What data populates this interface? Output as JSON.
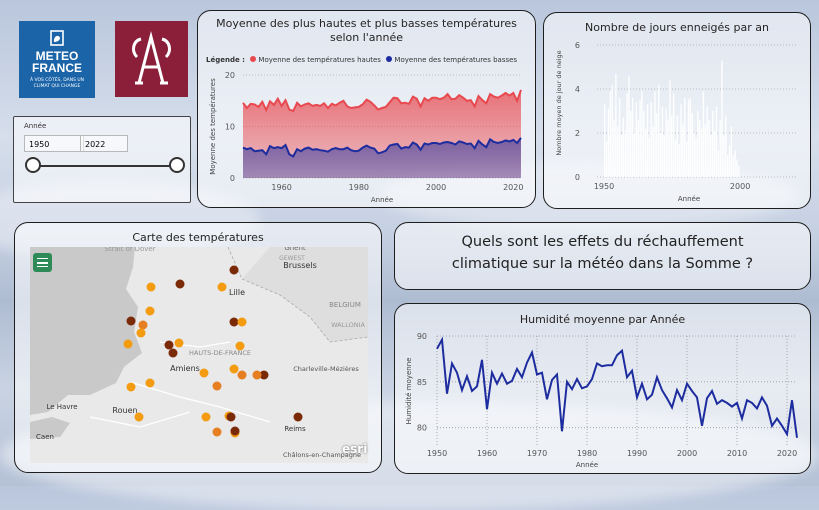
{
  "logos": {
    "meteo_line1": "METEO",
    "meteo_line2": "FRANCE",
    "meteo_tagline1": "À VOS CÔTÉS, DANS UN",
    "meteo_tagline2": "CLIMAT QUI CHANGE",
    "university_icon": "university-monogram-icon",
    "brand_blue": "#1b64a8",
    "brand_red": "#8b1f3a"
  },
  "filter": {
    "label": "Année",
    "start": "1950",
    "end": "2022",
    "range_fraction": [
      0,
      1
    ]
  },
  "temp_chart": {
    "title": "Moyenne des plus hautes et plus basses températures selon l'année",
    "legend_label": "Légende :",
    "legend_high": "Moyenne des températures hautes",
    "legend_low": "Moyenne des températures basses",
    "ylabel": "Moyenne des températures",
    "xlabel": "Année",
    "yticks": [
      "0",
      "10",
      "20"
    ],
    "xticks": [
      "1960",
      "1980",
      "2000",
      "2020"
    ],
    "color_high": "#e8494f",
    "color_low": "#1d2c9e"
  },
  "snow_chart": {
    "title": "Nombre de jours enneigés par an",
    "ylabel": "Nombre moyen de jour de neige",
    "xlabel": "Année",
    "yticks": [
      "0",
      "2",
      "4",
      "6"
    ],
    "xticks": [
      "1950",
      "2000"
    ]
  },
  "map": {
    "title": "Carte des températures",
    "menu_icon": "hamburger-menu-icon",
    "labels": [
      "Strait of Dover",
      "Brussels",
      "Ghent",
      "Lille",
      "BELGIUM",
      "WALLONIA",
      "HAUTS-DE-FRANCE",
      "Amiens",
      "Charleville-Mézières",
      "Le Havre",
      "Rouen",
      "Caen",
      "Reims",
      "Châlons-en-Champagne",
      "GEWEST"
    ],
    "attribution": "esri"
  },
  "question": {
    "line1": "Quels sont les effets du réchauffement",
    "line2": "climatique sur la météo dans la Somme ?"
  },
  "humidity_chart": {
    "title": "Humidité moyenne par Année",
    "ylabel": "Humidité moyenne",
    "xlabel": "Année",
    "yticks": [
      "80",
      "85",
      "90"
    ],
    "xticks": [
      "1950",
      "1960",
      "1970",
      "1980",
      "1990",
      "2000",
      "2010",
      "2020"
    ],
    "color": "#1d2c9e"
  },
  "chart_data": [
    {
      "type": "area",
      "title": "Moyenne des plus hautes et plus basses températures selon l'année",
      "xlabel": "Année",
      "ylabel": "Moyenne des températures",
      "xlim": [
        1950,
        2022
      ],
      "ylim": [
        0,
        20
      ],
      "x": [
        1950,
        1951,
        1952,
        1953,
        1954,
        1955,
        1956,
        1957,
        1958,
        1959,
        1960,
        1961,
        1962,
        1963,
        1964,
        1965,
        1966,
        1967,
        1968,
        1969,
        1970,
        1971,
        1972,
        1973,
        1974,
        1975,
        1976,
        1977,
        1978,
        1979,
        1980,
        1981,
        1982,
        1983,
        1984,
        1985,
        1986,
        1987,
        1988,
        1989,
        1990,
        1991,
        1992,
        1993,
        1994,
        1995,
        1996,
        1997,
        1998,
        1999,
        2000,
        2001,
        2002,
        2003,
        2004,
        2005,
        2006,
        2007,
        2008,
        2009,
        2010,
        2011,
        2012,
        2013,
        2014,
        2015,
        2016,
        2017,
        2018,
        2019,
        2020,
        2021,
        2022
      ],
      "series": [
        {
          "name": "Moyenne des températures hautes",
          "values": [
            14.6,
            13.6,
            14.4,
            14.3,
            13.8,
            14.8,
            13.2,
            14.9,
            14.2,
            15.4,
            14.0,
            15.1,
            13.3,
            13.0,
            14.6,
            13.9,
            14.3,
            14.5,
            14.0,
            14.2,
            14.0,
            14.5,
            13.6,
            14.4,
            14.1,
            14.6,
            15.0,
            13.9,
            13.6,
            13.7,
            13.8,
            14.3,
            15.2,
            14.8,
            14.1,
            13.3,
            13.6,
            13.8,
            14.7,
            15.6,
            15.5,
            14.5,
            14.6,
            14.4,
            15.8,
            15.4,
            13.9,
            15.5,
            15.0,
            15.6,
            15.6,
            15.3,
            15.6,
            16.3,
            15.3,
            15.4,
            16.1,
            15.6,
            15.0,
            15.1,
            13.9,
            15.9,
            15.1,
            14.5,
            16.3,
            15.8,
            15.6,
            16.0,
            16.5,
            16.0,
            16.5,
            15.0,
            17.1
          ]
        },
        {
          "name": "Moyenne des températures basses",
          "values": [
            5.9,
            5.6,
            5.8,
            5.2,
            5.3,
            5.4,
            4.6,
            6.2,
            5.8,
            6.0,
            5.8,
            6.4,
            4.6,
            4.2,
            5.6,
            5.2,
            5.7,
            5.9,
            5.5,
            5.6,
            5.4,
            5.3,
            5.1,
            5.6,
            5.8,
            5.6,
            5.6,
            5.9,
            5.4,
            5.2,
            5.3,
            5.9,
            6.3,
            5.9,
            5.7,
            4.8,
            5.0,
            5.3,
            6.3,
            6.5,
            6.6,
            5.7,
            6.0,
            5.9,
            6.9,
            6.5,
            5.5,
            6.7,
            6.5,
            6.8,
            6.8,
            6.6,
            6.9,
            7.0,
            6.8,
            6.5,
            7.1,
            6.9,
            6.6,
            6.7,
            5.8,
            7.2,
            6.5,
            6.0,
            7.5,
            7.0,
            6.8,
            7.0,
            7.3,
            7.1,
            7.4,
            6.8,
            7.8
          ]
        }
      ]
    },
    {
      "type": "bar",
      "title": "Nombre de jours enneigés par an",
      "xlabel": "Année",
      "ylabel": "Nombre moyen de jour de neige",
      "xlim": [
        1950,
        2022
      ],
      "ylim": [
        0,
        6
      ],
      "x": [
        1950,
        1951,
        1952,
        1953,
        1954,
        1955,
        1956,
        1957,
        1958,
        1959,
        1960,
        1961,
        1962,
        1963,
        1964,
        1965,
        1966,
        1967,
        1968,
        1969,
        1970,
        1971,
        1972,
        1973,
        1974,
        1975,
        1976,
        1977,
        1978,
        1979,
        1980,
        1981,
        1982,
        1983,
        1984,
        1985,
        1986,
        1987,
        1988,
        1989,
        1990,
        1991,
        1992,
        1993,
        1994,
        1995,
        1996,
        1997,
        1998,
        1999,
        2000,
        2001,
        2002,
        2003,
        2004,
        2005,
        2006,
        2007,
        2008,
        2009,
        2010,
        2011,
        2012,
        2013,
        2014,
        2015,
        2016,
        2017,
        2018,
        2019,
        2020,
        2021,
        2022
      ],
      "values": [
        3.3,
        1.6,
        3.1,
        3.9,
        4.2,
        2.6,
        4.7,
        2.3,
        3.6,
        1.9,
        2.7,
        2.1,
        3.8,
        4.6,
        3.0,
        3.6,
        2.0,
        3.4,
        2.6,
        3.5,
        3.9,
        3.0,
        2.2,
        3.3,
        1.8,
        3.4,
        2.3,
        3.9,
        2.9,
        4.2,
        2.0,
        3.2,
        1.9,
        3.1,
        2.6,
        4.4,
        2.8,
        3.8,
        1.7,
        2.8,
        1.5,
        3.3,
        2.4,
        3.6,
        1.6,
        3.5,
        3.6,
        2.9,
        2.0,
        1.8,
        3.0,
        2.6,
        2.2,
        3.9,
        2.4,
        3.2,
        2.6,
        1.9,
        3.0,
        2.1,
        3.2,
        1.2,
        2.6,
        5.3,
        1.9,
        2.8,
        1.0,
        1.4,
        2.3,
        1.0,
        1.2,
        0.8,
        0.5
      ]
    },
    {
      "type": "line",
      "title": "Humidité moyenne par Année",
      "xlabel": "Année",
      "ylabel": "Humidité moyenne",
      "xlim": [
        1950,
        2022
      ],
      "ylim": [
        78,
        90
      ],
      "x": [
        1950,
        1951,
        1952,
        1953,
        1954,
        1955,
        1956,
        1957,
        1958,
        1959,
        1960,
        1961,
        1962,
        1963,
        1964,
        1965,
        1966,
        1967,
        1968,
        1969,
        1970,
        1971,
        1972,
        1973,
        1974,
        1975,
        1976,
        1977,
        1978,
        1979,
        1980,
        1981,
        1982,
        1983,
        1984,
        1985,
        1986,
        1987,
        1988,
        1989,
        1990,
        1991,
        1992,
        1993,
        1994,
        1995,
        1996,
        1997,
        1998,
        1999,
        2000,
        2001,
        2002,
        2003,
        2004,
        2005,
        2006,
        2007,
        2008,
        2009,
        2010,
        2011,
        2012,
        2013,
        2014,
        2015,
        2016,
        2017,
        2018,
        2019,
        2020,
        2021,
        2022
      ],
      "values": [
        88.6,
        89.6,
        83.7,
        87.0,
        86.0,
        84.1,
        85.6,
        84.0,
        84.5,
        87.4,
        82.0,
        86.0,
        84.8,
        85.9,
        84.8,
        85.1,
        86.4,
        85.5,
        87.1,
        88.2,
        85.8,
        86.0,
        83.1,
        85.2,
        85.8,
        79.6,
        85.0,
        84.2,
        85.3,
        84.3,
        84.5,
        85.3,
        87.0,
        86.7,
        86.8,
        86.8,
        87.9,
        88.4,
        85.5,
        86.2,
        83.3,
        84.8,
        83.1,
        83.6,
        85.5,
        84.1,
        83.2,
        82.2,
        84.1,
        83.0,
        84.8,
        84.0,
        83.3,
        80.2,
        83.2,
        84.0,
        82.6,
        83.0,
        82.7,
        82.3,
        82.7,
        81.0,
        83.0,
        82.7,
        82.1,
        83.3,
        82.4,
        80.2,
        81.0,
        80.2,
        79.3,
        83.0,
        78.9
      ]
    }
  ]
}
